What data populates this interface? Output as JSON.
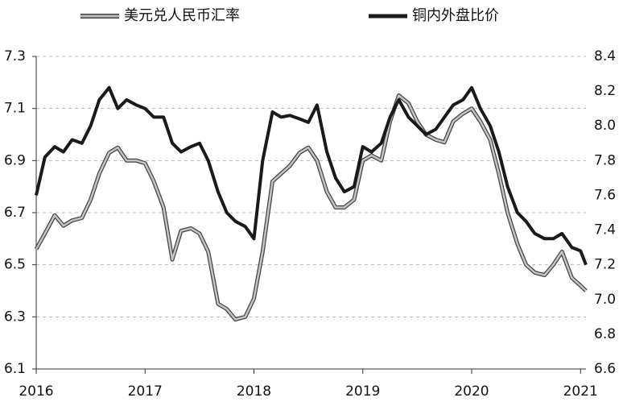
{
  "chart_data": {
    "type": "line",
    "x": [
      2016,
      2016.08,
      2016.17,
      2016.25,
      2016.33,
      2016.42,
      2016.5,
      2016.58,
      2016.67,
      2016.75,
      2016.83,
      2016.92,
      2017,
      2017.08,
      2017.17,
      2017.25,
      2017.33,
      2017.42,
      2017.5,
      2017.58,
      2017.67,
      2017.75,
      2017.83,
      2017.92,
      2018,
      2018.08,
      2018.17,
      2018.25,
      2018.33,
      2018.42,
      2018.5,
      2018.58,
      2018.67,
      2018.75,
      2018.83,
      2018.92,
      2019,
      2019.08,
      2019.17,
      2019.25,
      2019.33,
      2019.42,
      2019.5,
      2019.58,
      2019.67,
      2019.75,
      2019.83,
      2019.92,
      2020,
      2020.08,
      2020.17,
      2020.25,
      2020.33,
      2020.42,
      2020.5,
      2020.58,
      2020.67,
      2020.75,
      2020.83,
      2020.92,
      2021,
      2021.05
    ],
    "series": [
      {
        "name": "美元兑人民币汇率",
        "color": "#9a9a9a",
        "axis": "y",
        "values": [
          6.56,
          6.62,
          6.69,
          6.65,
          6.67,
          6.68,
          6.75,
          6.85,
          6.93,
          6.95,
          6.9,
          6.9,
          6.89,
          6.82,
          6.72,
          6.52,
          6.63,
          6.64,
          6.62,
          6.55,
          6.35,
          6.33,
          6.29,
          6.3,
          6.37,
          6.55,
          6.82,
          6.85,
          6.88,
          6.93,
          6.95,
          6.9,
          6.78,
          6.72,
          6.72,
          6.75,
          6.9,
          6.92,
          6.9,
          7.05,
          7.15,
          7.12,
          7.05,
          7.0,
          6.98,
          6.97,
          7.05,
          7.08,
          7.1,
          7.05,
          6.98,
          6.85,
          6.7,
          6.58,
          6.5,
          6.47,
          6.46,
          6.5,
          6.55,
          6.45,
          6.42,
          6.4
        ]
      },
      {
        "name": "铜内外盘比价",
        "color": "#1a1a1a",
        "axis": "y2",
        "values": [
          7.6,
          7.82,
          7.88,
          7.85,
          7.92,
          7.9,
          8.0,
          8.15,
          8.22,
          8.1,
          8.15,
          8.12,
          8.1,
          8.05,
          8.05,
          7.9,
          7.85,
          7.88,
          7.9,
          7.8,
          7.62,
          7.5,
          7.45,
          7.42,
          7.35,
          7.8,
          8.08,
          8.05,
          8.06,
          8.04,
          8.02,
          8.12,
          7.85,
          7.7,
          7.62,
          7.65,
          7.88,
          7.85,
          7.9,
          8.05,
          8.15,
          8.05,
          8.0,
          7.95,
          7.98,
          8.05,
          8.12,
          8.15,
          8.22,
          8.1,
          8.0,
          7.85,
          7.65,
          7.5,
          7.45,
          7.38,
          7.35,
          7.35,
          7.38,
          7.3,
          7.28,
          7.2
        ]
      }
    ],
    "xlim": [
      2016,
      2021.05
    ],
    "xticks": [
      2016,
      2017,
      2018,
      2019,
      2020,
      2021
    ],
    "ylim": [
      6.1,
      7.3
    ],
    "yticks": [
      6.1,
      6.3,
      6.5,
      6.7,
      6.9,
      7.1,
      7.3
    ],
    "y2lim": [
      6.6,
      8.4
    ],
    "y2ticks": [
      6.6,
      6.8,
      {
        "value": 7,
        "label": "7.0"
      },
      7.2,
      7.4,
      7.6,
      7.8,
      {
        "value": 8,
        "label": "8.0"
      },
      8.2,
      8.4
    ],
    "grid": true,
    "legend": "top"
  }
}
